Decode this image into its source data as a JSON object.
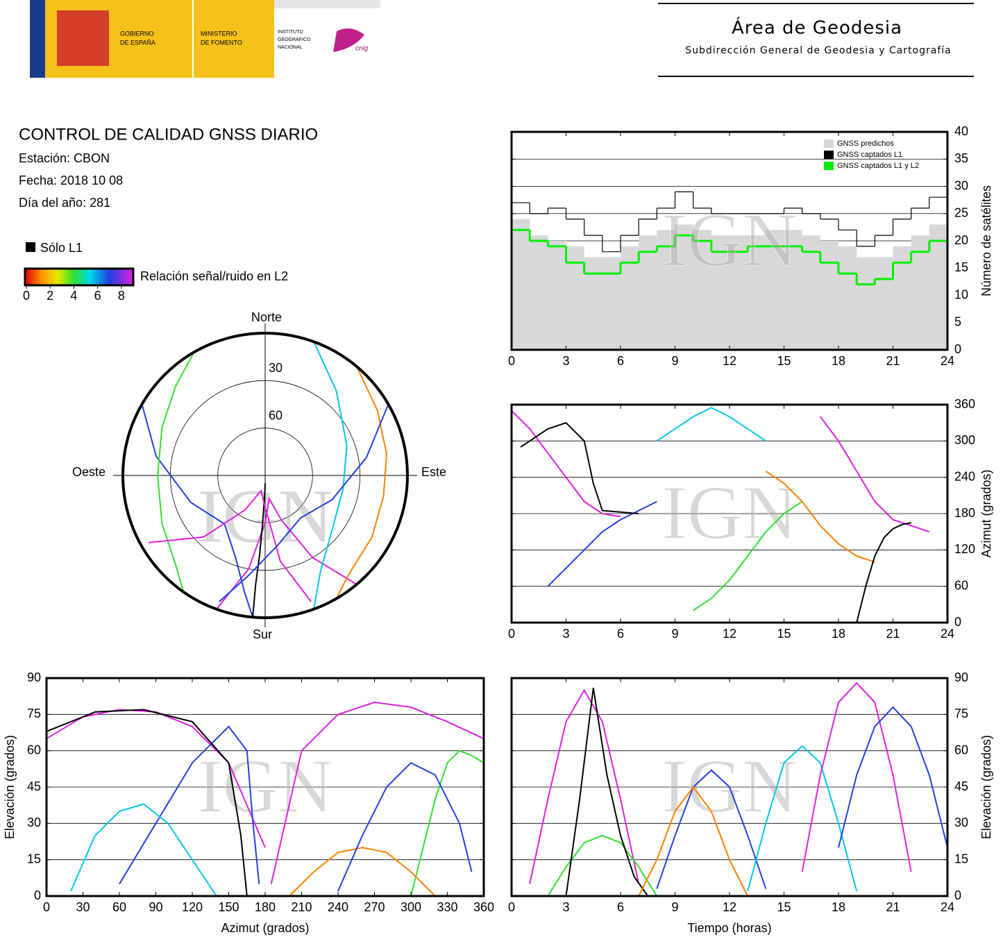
{
  "header": {
    "gobierno": [
      "GOBIERNO",
      "DE ESPAÑA"
    ],
    "ministerio": [
      "MINISTERIO",
      "DE FOMENTO"
    ],
    "instituto": [
      "INSTITUTO",
      "GEOGRÁFICO",
      "NACIONAL"
    ],
    "cnig": "cnig",
    "area": "Área de Geodesia",
    "subdireccion": "Subdirección General de Geodesia y Cartografía"
  },
  "info": {
    "title": "CONTROL DE CALIDAD GNSS DIARIO",
    "station": "Estación: CBON",
    "date": "Fecha: 2018 10 08",
    "doy": "Día del año: 281"
  },
  "legend": {
    "l1_only": "Sólo L1",
    "snr_label": "Relación señal/ruido en L2",
    "snr_lim": [
      0,
      9
    ],
    "snr_ticks": [
      0,
      2,
      4,
      6,
      8
    ]
  },
  "chart_data": [
    {
      "type": "step",
      "watermark": "IGN",
      "ylabel": "Número de satélites",
      "xlim": [
        0,
        24
      ],
      "xticks": [
        0,
        3,
        6,
        9,
        12,
        15,
        18,
        21,
        24
      ],
      "ylim": [
        0,
        40
      ],
      "yticks": [
        0,
        5,
        10,
        15,
        20,
        25,
        30,
        35,
        40
      ],
      "grid": true,
      "legend": "upper right",
      "x": [
        0,
        1,
        2,
        3,
        4,
        5,
        6,
        7,
        8,
        9,
        10,
        11,
        12,
        13,
        14,
        15,
        16,
        17,
        18,
        19,
        20,
        21,
        22,
        23
      ],
      "series": [
        {
          "name": "GNSS predichos",
          "color": "#d8d8d8",
          "fill": true,
          "values": [
            24,
            21,
            20,
            19,
            17,
            17,
            19,
            21,
            22,
            23,
            22,
            21,
            21,
            21,
            22,
            22,
            21,
            20,
            19,
            17,
            17,
            19,
            21,
            23
          ]
        },
        {
          "name": "GNSS captados L1",
          "color": "#000000",
          "fill": false,
          "values": [
            27,
            25,
            26,
            24,
            21,
            18,
            21,
            24,
            26,
            29,
            26,
            25,
            25,
            25,
            25,
            26,
            25,
            24,
            22,
            19,
            21,
            24,
            26,
            28
          ]
        },
        {
          "name": "GNSS captados L1 y L2",
          "color": "#00ee00",
          "fill": false,
          "values": [
            22,
            20,
            19,
            16,
            14,
            14,
            16,
            18,
            19,
            21,
            20,
            18,
            18,
            19,
            19,
            19,
            18,
            16,
            14,
            12,
            13,
            16,
            18,
            20
          ]
        }
      ]
    },
    {
      "type": "line",
      "watermark": "IGN",
      "ylabel": "Azimut (grados)",
      "xlim": [
        0,
        24
      ],
      "xticks": [
        0,
        3,
        6,
        9,
        12,
        15,
        18,
        21,
        24
      ],
      "ylim": [
        0,
        360
      ],
      "yticks": [
        0,
        60,
        120,
        180,
        240,
        300,
        360
      ],
      "grid": true,
      "series": [
        {
          "color": "#e020e0",
          "x": [
            0,
            1,
            2,
            3,
            4,
            5,
            6
          ],
          "values": [
            350,
            320,
            280,
            240,
            200,
            180,
            175
          ]
        },
        {
          "color": "#2040e0",
          "x": [
            2,
            3,
            4,
            5,
            6,
            7,
            8
          ],
          "values": [
            60,
            90,
            120,
            150,
            170,
            185,
            200
          ]
        },
        {
          "color": "#00c8e8",
          "x": [
            8,
            9,
            10,
            11,
            12,
            13,
            14
          ],
          "values": [
            300,
            320,
            340,
            355,
            340,
            320,
            300
          ]
        },
        {
          "color": "#30e030",
          "x": [
            10,
            11,
            12,
            13,
            14,
            15,
            16
          ],
          "values": [
            20,
            40,
            70,
            110,
            150,
            180,
            200
          ]
        },
        {
          "color": "#000000",
          "x": [
            0.5,
            2,
            3,
            4,
            4.5,
            5,
            7
          ],
          "values": [
            290,
            320,
            330,
            300,
            230,
            185,
            180
          ]
        },
        {
          "color": "#ff8000",
          "x": [
            14,
            15,
            16,
            17,
            18,
            19,
            20
          ],
          "values": [
            250,
            230,
            200,
            160,
            130,
            110,
            100
          ]
        },
        {
          "color": "#e020e0",
          "x": [
            17,
            18,
            19,
            20,
            21,
            22,
            23
          ],
          "values": [
            340,
            300,
            250,
            200,
            170,
            160,
            150
          ]
        },
        {
          "color": "#000000",
          "x": [
            19,
            19.5,
            20,
            20.5,
            21,
            21.5,
            22
          ],
          "values": [
            0,
            60,
            110,
            140,
            155,
            162,
            165
          ]
        }
      ]
    },
    {
      "type": "line",
      "watermark": "IGN",
      "ylabel": "Elevación (grados)",
      "xlabel": "Tiempo (horas)",
      "xlim": [
        0,
        24
      ],
      "xticks": [
        0,
        3,
        6,
        9,
        12,
        15,
        18,
        21,
        24
      ],
      "ylim": [
        0,
        90
      ],
      "yticks": [
        0,
        15,
        30,
        45,
        60,
        75,
        90
      ],
      "grid": true,
      "series": [
        {
          "color": "#e020e0",
          "x": [
            1,
            2,
            3,
            4,
            5,
            6,
            7
          ],
          "values": [
            5,
            40,
            72,
            85,
            72,
            40,
            5
          ]
        },
        {
          "color": "#2040e0",
          "x": [
            8,
            9,
            10,
            11,
            12,
            13,
            14
          ],
          "values": [
            3,
            25,
            45,
            52,
            45,
            25,
            3
          ]
        },
        {
          "color": "#00c8e8",
          "x": [
            13,
            14,
            15,
            16,
            17,
            18,
            19
          ],
          "values": [
            2,
            30,
            55,
            62,
            55,
            30,
            2
          ]
        },
        {
          "color": "#30e030",
          "x": [
            2,
            3,
            4,
            5,
            6,
            7,
            8
          ],
          "values": [
            0,
            12,
            22,
            25,
            22,
            12,
            0
          ]
        },
        {
          "color": "#000000",
          "x": [
            3,
            3.75,
            4.5,
            5.25,
            6,
            6.75,
            7.5
          ],
          "values": [
            0,
            40,
            86,
            50,
            25,
            8,
            0
          ]
        },
        {
          "color": "#e020e0",
          "x": [
            16,
            17,
            18,
            19,
            20,
            21,
            22
          ],
          "values": [
            10,
            50,
            80,
            88,
            80,
            50,
            10
          ]
        },
        {
          "color": "#ff8000",
          "x": [
            7,
            8,
            9,
            10,
            11,
            12,
            13
          ],
          "values": [
            0,
            15,
            35,
            45,
            35,
            15,
            0
          ]
        },
        {
          "color": "#2040e0",
          "x": [
            18,
            19,
            20,
            21,
            22,
            23,
            24
          ],
          "values": [
            20,
            50,
            70,
            78,
            70,
            50,
            20
          ]
        }
      ]
    },
    {
      "type": "line",
      "watermark": "IGN",
      "ylabel": "Elevación (grados)",
      "xlabel": "Azimut (grados)",
      "xlim": [
        0,
        360
      ],
      "xticks": [
        0,
        30,
        60,
        90,
        120,
        150,
        180,
        210,
        240,
        270,
        300,
        330,
        360
      ],
      "ylim": [
        0,
        90
      ],
      "yticks": [
        0,
        15,
        30,
        45,
        60,
        75,
        90
      ],
      "grid": true,
      "series": [
        {
          "color": "#e020e0",
          "x": [
            0,
            30,
            60,
            90,
            120,
            150,
            180
          ],
          "values": [
            65,
            74,
            77,
            76,
            70,
            55,
            20
          ]
        },
        {
          "color": "#2040e0",
          "x": [
            60,
            90,
            120,
            150,
            165,
            170,
            175
          ],
          "values": [
            5,
            30,
            55,
            70,
            60,
            30,
            5
          ]
        },
        {
          "color": "#00c8e8",
          "x": [
            20,
            40,
            60,
            80,
            100,
            120,
            140
          ],
          "values": [
            2,
            25,
            35,
            38,
            30,
            15,
            0
          ]
        },
        {
          "color": "#30e030",
          "x": [
            300,
            310,
            320,
            330,
            340,
            350,
            360
          ],
          "values": [
            0,
            20,
            40,
            55,
            60,
            58,
            55
          ]
        },
        {
          "color": "#000000",
          "x": [
            0,
            40,
            80,
            120,
            150,
            160,
            165
          ],
          "values": [
            68,
            76,
            77,
            72,
            55,
            25,
            0
          ]
        },
        {
          "color": "#e020e0",
          "x": [
            185,
            210,
            240,
            270,
            300,
            330,
            360
          ],
          "values": [
            5,
            60,
            75,
            80,
            78,
            72,
            65
          ]
        },
        {
          "color": "#ff8000",
          "x": [
            200,
            220,
            240,
            260,
            280,
            300,
            320
          ],
          "values": [
            0,
            10,
            18,
            20,
            18,
            10,
            0
          ]
        },
        {
          "color": "#2040e0",
          "x": [
            240,
            260,
            280,
            300,
            320,
            340,
            350
          ],
          "values": [
            2,
            25,
            45,
            55,
            50,
            30,
            10
          ]
        }
      ]
    },
    {
      "type": "polar",
      "watermark": "IGN",
      "directions": {
        "north": "Norte",
        "south": "Sur",
        "east": "Este",
        "west": "Oeste"
      },
      "ylim": [
        0,
        90
      ],
      "rings": [
        30,
        60
      ],
      "series": [
        {
          "color": "#e020e0",
          "x": [
            200,
            190,
            180,
            170,
            160,
            150,
            140
          ],
          "values": [
            0,
            30,
            60,
            75,
            60,
            30,
            0
          ]
        },
        {
          "color": "#2040e0",
          "x": [
            300,
            280,
            250,
            220,
            200,
            190,
            185
          ],
          "values": [
            0,
            20,
            40,
            50,
            35,
            15,
            0
          ]
        },
        {
          "color": "#00c8e8",
          "x": [
            20,
            40,
            70,
            100,
            130,
            150,
            160
          ],
          "values": [
            0,
            20,
            35,
            40,
            35,
            20,
            0
          ]
        },
        {
          "color": "#30e030",
          "x": [
            330,
            315,
            295,
            270,
            245,
            225,
            215
          ],
          "values": [
            0,
            10,
            18,
            22,
            18,
            10,
            0
          ]
        },
        {
          "color": "#000000",
          "x": [
            185,
            185,
            184,
            183,
            182,
            181,
            180
          ],
          "values": [
            0,
            20,
            40,
            60,
            75,
            80,
            85
          ]
        },
        {
          "color": "#e020e0",
          "x": [
            160,
            170,
            180,
            195,
            210,
            225,
            240
          ],
          "values": [
            5,
            35,
            70,
            80,
            65,
            35,
            5
          ]
        },
        {
          "color": "#ff8000",
          "x": [
            40,
            60,
            80,
            100,
            120,
            140,
            150
          ],
          "values": [
            0,
            8,
            12,
            14,
            12,
            8,
            0
          ]
        },
        {
          "color": "#2040e0",
          "x": [
            60,
            80,
            110,
            140,
            170,
            190,
            200
          ],
          "values": [
            0,
            25,
            45,
            55,
            45,
            25,
            5
          ]
        }
      ]
    }
  ]
}
